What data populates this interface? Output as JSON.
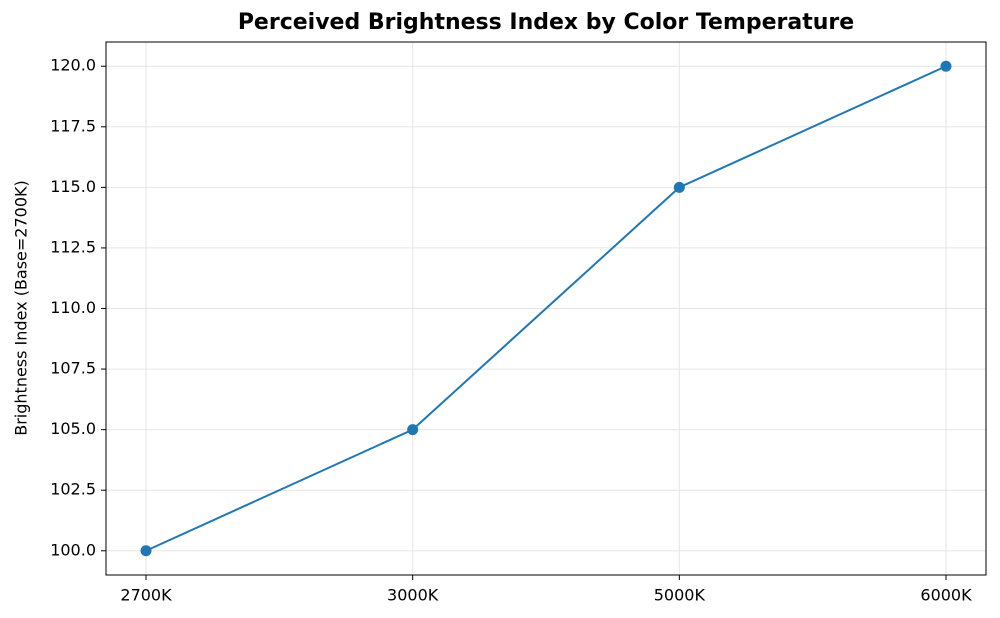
{
  "chart_data": {
    "type": "line",
    "title": "Perceived Brightness Index by Color Temperature",
    "y_label": "Brightness Index (Base=2700K)",
    "categories": [
      "2700K",
      "3000K",
      "5000K",
      "6000K"
    ],
    "values": [
      100,
      105,
      115,
      120
    ],
    "color": "#1f77b4",
    "ylim": [
      99,
      121
    ],
    "yticks": [
      {
        "value": 100,
        "label": "100.0"
      },
      {
        "value": 102.5,
        "label": "102.5"
      },
      {
        "value": 105,
        "label": "105.0"
      },
      {
        "value": 107.5,
        "label": "107.5"
      },
      {
        "value": 110,
        "label": "110.0"
      },
      {
        "value": 112.5,
        "label": "112.5"
      },
      {
        "value": 115,
        "label": "115.0"
      },
      {
        "value": 117.5,
        "label": "117.5"
      },
      {
        "value": 120,
        "label": "120.0"
      }
    ],
    "grid": true
  }
}
